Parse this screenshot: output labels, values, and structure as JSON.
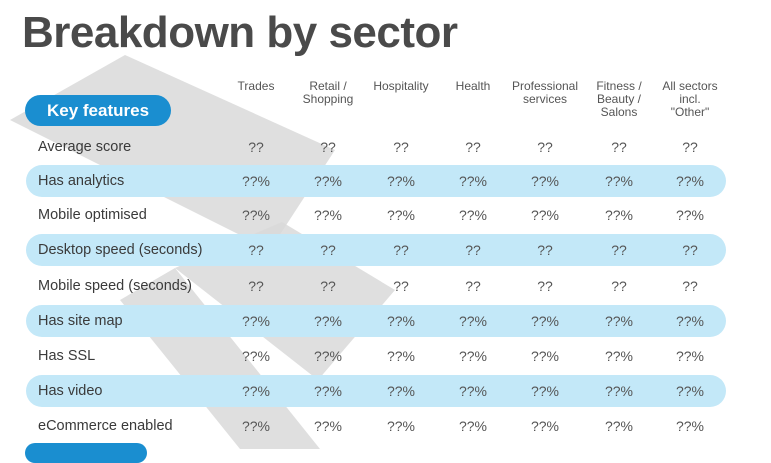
{
  "title": "Breakdown by sector",
  "key_features_label": "Key features",
  "columns": [
    [
      "Trades"
    ],
    [
      "Retail /",
      "Shopping"
    ],
    [
      "Hospitality"
    ],
    [
      "Health"
    ],
    [
      "Professional",
      "services"
    ],
    [
      "Fitness /",
      "Beauty /",
      "Salons"
    ],
    [
      "All sectors",
      "incl.",
      "\"Other\""
    ]
  ],
  "rows": [
    {
      "label": "Average score",
      "highlight": false,
      "values": [
        "??",
        "??",
        "??",
        "??",
        "??",
        "??",
        "??"
      ]
    },
    {
      "label": "Has analytics",
      "highlight": true,
      "values": [
        "??%",
        "??%",
        "??%",
        "??%",
        "??%",
        "??%",
        "??%"
      ]
    },
    {
      "label": "Mobile optimised",
      "highlight": false,
      "values": [
        "??%",
        "??%",
        "??%",
        "??%",
        "??%",
        "??%",
        "??%"
      ]
    },
    {
      "label": "Desktop speed (seconds)",
      "highlight": true,
      "values": [
        "??",
        "??",
        "??",
        "??",
        "??",
        "??",
        "??"
      ]
    },
    {
      "label": "Mobile speed (seconds)",
      "highlight": false,
      "values": [
        "??",
        "??",
        "??",
        "??",
        "??",
        "??",
        "??"
      ]
    },
    {
      "label": "Has site map",
      "highlight": true,
      "values": [
        "??%",
        "??%",
        "??%",
        "??%",
        "??%",
        "??%",
        "??%"
      ]
    },
    {
      "label": "Has SSL",
      "highlight": false,
      "values": [
        "??%",
        "??%",
        "??%",
        "??%",
        "??%",
        "??%",
        "??%"
      ]
    },
    {
      "label": "Has video",
      "highlight": true,
      "values": [
        "??%",
        "??%",
        "??%",
        "??%",
        "??%",
        "??%",
        "??%"
      ]
    },
    {
      "label": "eCommerce enabled",
      "highlight": false,
      "values": [
        "??%",
        "??%",
        "??%",
        "??%",
        "??%",
        "??%",
        "??%"
      ]
    }
  ],
  "colors": {
    "accent": "#1a8ed0",
    "band": "#c3e8f8",
    "watermark": "#d6d6d6"
  }
}
